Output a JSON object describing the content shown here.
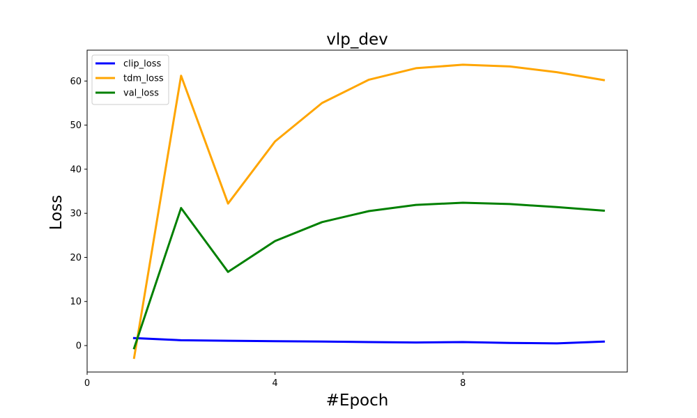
{
  "chart_data": {
    "type": "line",
    "title": "vlp_dev",
    "xlabel": "#Epoch",
    "ylabel": "Loss",
    "xlim": [
      0,
      11.5
    ],
    "ylim": [
      -6,
      67
    ],
    "xticks": [
      0,
      4,
      8
    ],
    "xtick_labels": [
      "0",
      "4",
      "8"
    ],
    "yticks": [
      0,
      10,
      20,
      30,
      40,
      50,
      60
    ],
    "ytick_labels": [
      "0",
      "10",
      "20",
      "30",
      "40",
      "50",
      "60"
    ],
    "grid": false,
    "legend_position": "top-left",
    "x": [
      1,
      2,
      3,
      4,
      5,
      6,
      7,
      8,
      9,
      10,
      11
    ],
    "series": [
      {
        "name": "clip_loss",
        "color": "#0000ff",
        "values": [
          1.7,
          1.2,
          1.1,
          1.0,
          0.9,
          0.8,
          0.7,
          0.8,
          0.6,
          0.5,
          0.9
        ]
      },
      {
        "name": "tdm_loss",
        "color": "#ffa500",
        "values": [
          -2.8,
          61.2,
          32.2,
          46.3,
          55.0,
          60.3,
          62.9,
          63.7,
          63.3,
          62.0,
          60.2
        ]
      },
      {
        "name": "val_loss",
        "color": "#008000",
        "values": [
          -0.6,
          31.2,
          16.7,
          23.7,
          28.0,
          30.5,
          31.9,
          32.4,
          32.1,
          31.4,
          30.6
        ]
      }
    ]
  }
}
